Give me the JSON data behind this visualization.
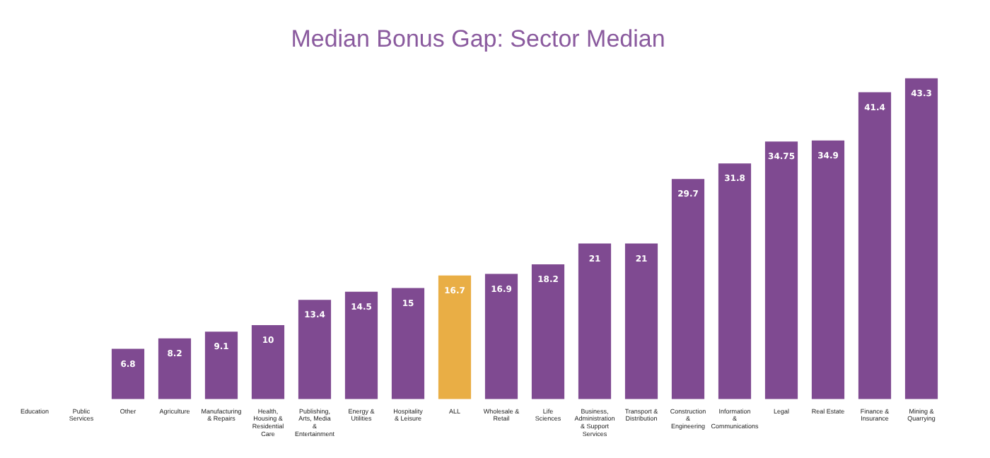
{
  "chart_data": {
    "type": "bar",
    "title": "Median Bonus Gap: Sector Median",
    "categories": [
      "Education",
      "Public Services",
      "Other",
      "Agriculture",
      "Manufacturing & Repairs",
      "Health, Housing & Residential Care",
      "Publishing, Arts, Media & Entertainment",
      "Energy & Utilities",
      "Hospitality & Leisure",
      "ALL",
      "Wholesale & Retail",
      "Life Sciences",
      "Business, Administration & Support Services",
      "Transport & Distribution",
      "Construction & Engineering",
      "Information & Communications",
      "Legal",
      "Real Estate",
      "Finance & Insurance",
      "Mining & Quarrying"
    ],
    "values": [
      null,
      null,
      6.8,
      8.2,
      9.1,
      10,
      13.4,
      14.5,
      15,
      16.7,
      16.9,
      18.2,
      21,
      21,
      29.7,
      31.8,
      34.75,
      34.9,
      41.4,
      43.3
    ],
    "colors": [
      "#7f4a91",
      "#7f4a91",
      "#7f4a91",
      "#7f4a91",
      "#7f4a91",
      "#7f4a91",
      "#7f4a91",
      "#7f4a91",
      "#7f4a91",
      "#e9ae45",
      "#7f4a91",
      "#7f4a91",
      "#7f4a91",
      "#7f4a91",
      "#7f4a91",
      "#7f4a91",
      "#7f4a91",
      "#7f4a91",
      "#7f4a91",
      "#7f4a91"
    ],
    "data_labels": true,
    "grid": false,
    "legend": false,
    "tick_labels": "x"
  }
}
